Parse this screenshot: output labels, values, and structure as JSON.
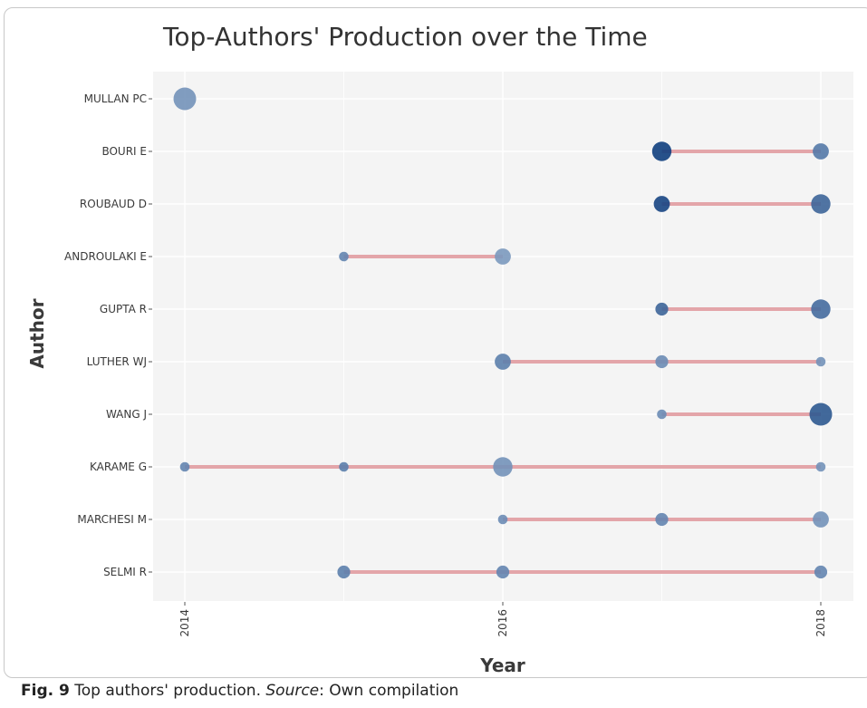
{
  "chart_data": {
    "type": "scatter",
    "title": "Top-Authors' Production over the Time",
    "xlabel": "Year",
    "ylabel": "Author",
    "xlim": [
      2013.8,
      2018.2
    ],
    "xticks": [
      2014,
      2016,
      2018
    ],
    "grid": true,
    "authors": [
      "MULLAN PC",
      "BOURI E",
      "ROUBAUD D",
      "ANDROULAKI E",
      "GUPTA R",
      "LUTHER WJ",
      "WANG J",
      "KARAME G",
      "MARCHESI M",
      "SELMI R"
    ],
    "series": [
      {
        "author": "MULLAN PC",
        "range": null,
        "points": [
          {
            "year": 2014,
            "articles": 5,
            "tc": 0.35
          }
        ]
      },
      {
        "author": "BOURI E",
        "range": [
          2017,
          2018
        ],
        "points": [
          {
            "year": 2017,
            "articles": 4,
            "tc": 1.0
          },
          {
            "year": 2018,
            "articles": 3,
            "tc": 0.55
          }
        ]
      },
      {
        "author": "ROUBAUD D",
        "range": [
          2017,
          2018
        ],
        "points": [
          {
            "year": 2017,
            "articles": 3,
            "tc": 0.95
          },
          {
            "year": 2018,
            "articles": 4,
            "tc": 0.7
          }
        ]
      },
      {
        "author": "ANDROULAKI E",
        "range": [
          2015,
          2016
        ],
        "points": [
          {
            "year": 2015,
            "articles": 1,
            "tc": 0.45
          },
          {
            "year": 2016,
            "articles": 3,
            "tc": 0.3
          }
        ]
      },
      {
        "author": "GUPTA R",
        "range": [
          2017,
          2018
        ],
        "points": [
          {
            "year": 2017,
            "articles": 2,
            "tc": 0.7
          },
          {
            "year": 2018,
            "articles": 4,
            "tc": 0.65
          }
        ]
      },
      {
        "author": "LUTHER WJ",
        "range": [
          2016,
          2018
        ],
        "points": [
          {
            "year": 2016,
            "articles": 3,
            "tc": 0.5
          },
          {
            "year": 2017,
            "articles": 2,
            "tc": 0.4
          },
          {
            "year": 2018,
            "articles": 1,
            "tc": 0.35
          }
        ]
      },
      {
        "author": "WANG J",
        "range": [
          2017,
          2018
        ],
        "points": [
          {
            "year": 2017,
            "articles": 1,
            "tc": 0.4
          },
          {
            "year": 2018,
            "articles": 5,
            "tc": 0.8
          }
        ]
      },
      {
        "author": "KARAME G",
        "range": [
          2014,
          2018
        ],
        "points": [
          {
            "year": 2014,
            "articles": 1,
            "tc": 0.45
          },
          {
            "year": 2015,
            "articles": 1,
            "tc": 0.5
          },
          {
            "year": 2016,
            "articles": 4,
            "tc": 0.35
          },
          {
            "year": 2018,
            "articles": 1,
            "tc": 0.35
          }
        ]
      },
      {
        "author": "MARCHESI M",
        "range": [
          2016,
          2018
        ],
        "points": [
          {
            "year": 2016,
            "articles": 1,
            "tc": 0.4
          },
          {
            "year": 2017,
            "articles": 2,
            "tc": 0.45
          },
          {
            "year": 2018,
            "articles": 3,
            "tc": 0.35
          }
        ]
      },
      {
        "author": "SELMI R",
        "range": [
          2015,
          2018
        ],
        "points": [
          {
            "year": 2015,
            "articles": 2,
            "tc": 0.5
          },
          {
            "year": 2016,
            "articles": 2,
            "tc": 0.45
          },
          {
            "year": 2018,
            "articles": 2,
            "tc": 0.45
          }
        ]
      }
    ],
    "colors": {
      "panel_background": "#f4f4f4",
      "grid": "#ffffff",
      "segment": "#e3a5a9",
      "point_light": "#a9bfd9",
      "point_dark": "#0f3f7e"
    }
  },
  "caption": {
    "label": "Fig. 9",
    "text_before": " Top authors' production. ",
    "source_label": "Source",
    "text_after": ": Own compilation"
  }
}
